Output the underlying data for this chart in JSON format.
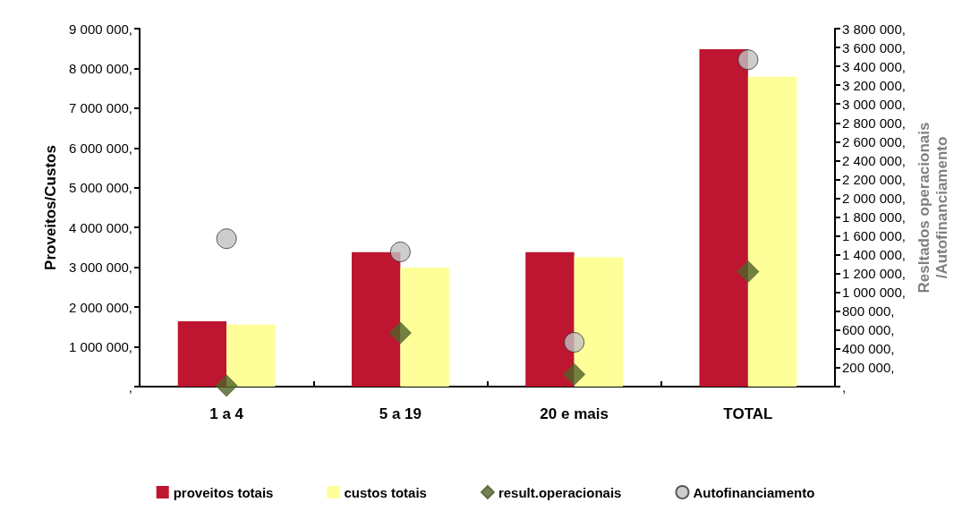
{
  "chart_data": {
    "type": "bar",
    "ylabel": "Proveitos/Custos",
    "y2label": "Resltados operacionais\n/Autofinanciamento",
    "categories": [
      "1 a 4",
      "5 a 19",
      "20 e mais",
      "TOTAL"
    ],
    "series": [
      {
        "name": "proveitos totais",
        "color": "#be1530",
        "values": [
          1640000,
          3380000,
          3380000,
          8480000
        ]
      },
      {
        "name": "custos totais",
        "color": "#ffff99",
        "values": [
          1560000,
          2990000,
          3250000,
          7790000
        ]
      },
      {
        "name": "result.operacionais",
        "type": "scatter",
        "axis": "y2",
        "marker": "diamond",
        "color": "#4f6228",
        "values": [
          10000,
          570000,
          130000,
          1220000
        ]
      },
      {
        "name": "Autofinanciamento",
        "type": "scatter",
        "axis": "y2",
        "marker": "circle",
        "color": "#c0c0c0",
        "values": [
          1570000,
          1430000,
          470000,
          3470000
        ]
      }
    ],
    "ylim": [
      0,
      9000000
    ],
    "yticks": [
      {
        "value": 0,
        "label": ","
      },
      {
        "value": 1000000,
        "label": "1 000 000,"
      },
      {
        "value": 2000000,
        "label": "2 000 000,"
      },
      {
        "value": 3000000,
        "label": "3 000 000,"
      },
      {
        "value": 4000000,
        "label": "4 000 000,"
      },
      {
        "value": 5000000,
        "label": "5 000 000,"
      },
      {
        "value": 6000000,
        "label": "6 000 000,"
      },
      {
        "value": 7000000,
        "label": "7 000 000,"
      },
      {
        "value": 8000000,
        "label": "8 000 000,"
      },
      {
        "value": 9000000,
        "label": "9 000 000,"
      }
    ],
    "y2lim": [
      0,
      3800000
    ],
    "y2ticks": [
      {
        "value": 0,
        "label": ","
      },
      {
        "value": 200000,
        "label": "200 000,"
      },
      {
        "value": 400000,
        "label": "400 000,"
      },
      {
        "value": 600000,
        "label": "600 000,"
      },
      {
        "value": 800000,
        "label": "800 000,"
      },
      {
        "value": 1000000,
        "label": "1 000 000,"
      },
      {
        "value": 1200000,
        "label": "1 200 000,"
      },
      {
        "value": 1400000,
        "label": "1 400 000,"
      },
      {
        "value": 1600000,
        "label": "1 600 000,"
      },
      {
        "value": 1800000,
        "label": "1 800 000,"
      },
      {
        "value": 2000000,
        "label": "2 000 000,"
      },
      {
        "value": 2200000,
        "label": "2 200 000,"
      },
      {
        "value": 2400000,
        "label": "2 400 000,"
      },
      {
        "value": 2600000,
        "label": "2 600 000,"
      },
      {
        "value": 2800000,
        "label": "2 800 000,"
      },
      {
        "value": 3000000,
        "label": "3 000 000,"
      },
      {
        "value": 3200000,
        "label": "3 200 000,"
      },
      {
        "value": 3400000,
        "label": "3 400 000,"
      },
      {
        "value": 3600000,
        "label": "3 600 000,"
      },
      {
        "value": 3800000,
        "label": "3 800 000,"
      }
    ],
    "grid": false,
    "legend": "bottom"
  }
}
